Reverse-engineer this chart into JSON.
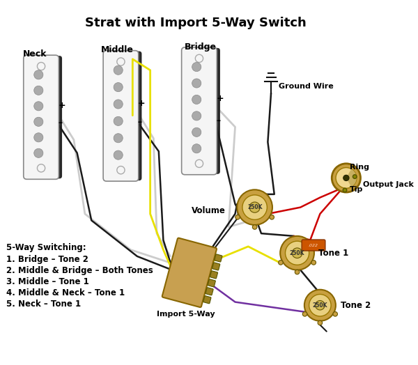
{
  "title": "Strat with Import 5-Way Switch",
  "title_fontsize": 13,
  "title_fontweight": "bold",
  "background_color": "#ffffff",
  "labels": {
    "neck": "Neck",
    "middle": "Middle",
    "bridge": "Bridge",
    "ground_wire": "Ground Wire",
    "volume": "Volume",
    "output_jack": "Output Jack",
    "ring": "Ring",
    "tip": "Tip",
    "tone1": "Tone 1",
    "tone2": "Tone 2",
    "import_5way": "Import 5-Way",
    "switching_title": "5-Way Switching:",
    "switching_items": [
      "1. Bridge – Tone 2",
      "2. Middle & Bridge – Both Tones",
      "3. Middle – Tone 1",
      "4. Middle & Neck – Tone 1",
      "5. Neck – Tone 1"
    ],
    "pot_label_vol": "250K",
    "pot_label_tone1": "250K",
    "pot_label_tone2": "250K",
    "minus": "–",
    "plus": "+"
  },
  "colors": {
    "white_wire": "#cccccc",
    "black_wire": "#1a1a1a",
    "yellow_wire": "#e8e000",
    "green_wire": "#228B22",
    "red_wire": "#cc0000",
    "purple_wire": "#7030a0",
    "pickup_body": "#2a2a2a",
    "pickup_face": "#f5f5f5",
    "pickup_shadow": "#555555",
    "pickup_dots": "#aaaaaa",
    "pot_outer": "#c8a040",
    "pot_inner": "#e8d080",
    "pot_center": "#d0b850",
    "switch_body": "#c8a050",
    "switch_connector": "#9a8020",
    "ground_symbol": "#111111",
    "cap_orange": "#cc5500",
    "jack_outer": "#c8a040",
    "jack_inner": "#f0d890",
    "text_color": "#000000"
  }
}
